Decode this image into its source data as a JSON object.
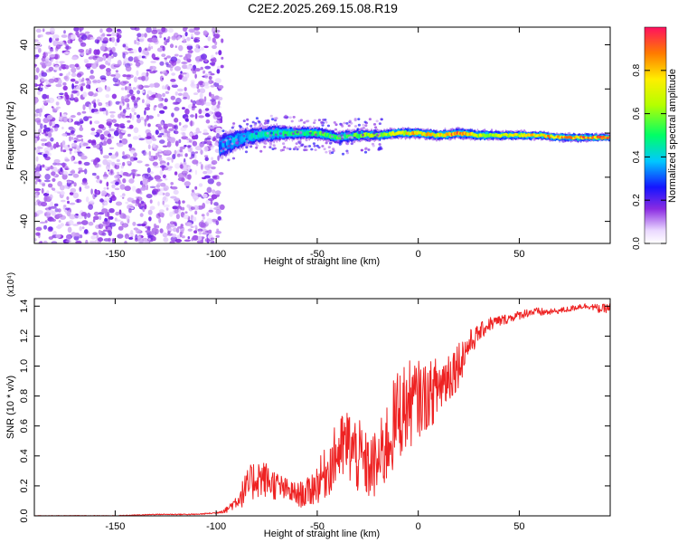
{
  "title": "C2E2.2025.269.15.08.R19",
  "chart_data": [
    {
      "type": "heatmap",
      "xlabel": "Height of straight line (km)",
      "ylabel": "Frequency (Hz)",
      "xlim": [
        -190,
        95
      ],
      "ylim": [
        -50,
        48
      ],
      "x_ticks": [
        -150,
        -100,
        -50,
        0,
        50
      ],
      "x_tick_labels": [
        "-150",
        "-100",
        "-50",
        "0",
        "50"
      ],
      "y_ticks": [
        -40,
        -20,
        0,
        20,
        40
      ],
      "y_tick_labels": [
        "-40",
        "-20",
        "0",
        "20",
        "40"
      ],
      "noise_region_x": [
        -190,
        -97
      ],
      "signal_ridge": {
        "x": [
          -98,
          -90,
          -80,
          -70,
          -60,
          -50,
          -40,
          -30,
          -20,
          -10,
          0,
          10,
          20,
          30,
          40,
          50,
          60,
          70,
          80,
          95
        ],
        "center_freq": [
          -6,
          -3,
          -1,
          0,
          0,
          0,
          -2,
          -1,
          -1,
          0,
          0,
          -1,
          0,
          -1,
          -1,
          -1,
          -1,
          -2,
          -2,
          -2
        ],
        "half_width": [
          6,
          5,
          4,
          4,
          3,
          3,
          3,
          3,
          2.5,
          2.5,
          2.5,
          2.5,
          2.5,
          2.5,
          2.2,
          2.2,
          2,
          2,
          2,
          1.8
        ],
        "peak_amplitude": [
          0.35,
          0.4,
          0.45,
          0.5,
          0.55,
          0.6,
          0.55,
          0.6,
          0.7,
          0.75,
          0.85,
          0.8,
          0.95,
          0.75,
          0.7,
          0.8,
          0.85,
          0.9,
          0.92,
          0.95
        ]
      },
      "colorbar": {
        "label": "Normalized spectral amplitude",
        "ticks": [
          0.0,
          0.2,
          0.4,
          0.6,
          0.8
        ],
        "tick_labels": [
          "0.0",
          "0.2",
          "0.4",
          "0.6",
          "0.8"
        ],
        "range": [
          0,
          1
        ]
      }
    },
    {
      "type": "line",
      "xlabel": "Height of straight line (km)",
      "ylabel": "SNR (10 * v/v)",
      "multiplier": "(x10⁴)",
      "xlim": [
        -190,
        95
      ],
      "ylim": [
        0,
        1.45
      ],
      "x_ticks": [
        -150,
        -100,
        -50,
        0,
        50
      ],
      "x_tick_labels": [
        "-150",
        "-100",
        "-50",
        "0",
        "50"
      ],
      "y_ticks": [
        0.0,
        0.2,
        0.4,
        0.6,
        0.8,
        1.0,
        1.2,
        1.4
      ],
      "y_tick_labels": [
        "0.0",
        "0.2",
        "0.4",
        "0.6",
        "0.8",
        "1.0",
        "1.2",
        "1.4"
      ],
      "series": [
        {
          "name": "SNR",
          "color": "#ee2222",
          "x": [
            -190,
            -170,
            -150,
            -130,
            -110,
            -100,
            -95,
            -90,
            -85,
            -80,
            -75,
            -70,
            -65,
            -60,
            -55,
            -50,
            -45,
            -40,
            -35,
            -30,
            -25,
            -20,
            -15,
            -10,
            -5,
            0,
            5,
            10,
            15,
            20,
            25,
            30,
            35,
            40,
            45,
            50,
            55,
            60,
            65,
            70,
            75,
            80,
            85,
            90,
            95
          ],
          "values": [
            0.0,
            0.0,
            0.0,
            0.01,
            0.01,
            0.02,
            0.04,
            0.1,
            0.18,
            0.26,
            0.24,
            0.2,
            0.17,
            0.14,
            0.15,
            0.22,
            0.3,
            0.42,
            0.48,
            0.4,
            0.32,
            0.34,
            0.5,
            0.68,
            0.74,
            0.78,
            0.8,
            0.86,
            0.94,
            1.02,
            1.14,
            1.22,
            1.28,
            1.3,
            1.32,
            1.34,
            1.36,
            1.36,
            1.36,
            1.37,
            1.38,
            1.4,
            1.4,
            1.38,
            1.39
          ],
          "noise_amplitude": [
            0.003,
            0.003,
            0.003,
            0.003,
            0.004,
            0.005,
            0.02,
            0.05,
            0.12,
            0.14,
            0.12,
            0.1,
            0.08,
            0.08,
            0.1,
            0.14,
            0.18,
            0.22,
            0.26,
            0.26,
            0.22,
            0.24,
            0.3,
            0.32,
            0.3,
            0.26,
            0.22,
            0.22,
            0.2,
            0.16,
            0.1,
            0.06,
            0.05,
            0.04,
            0.03,
            0.03,
            0.03,
            0.03,
            0.02,
            0.02,
            0.02,
            0.02,
            0.02,
            0.03,
            0.03
          ]
        }
      ]
    }
  ]
}
